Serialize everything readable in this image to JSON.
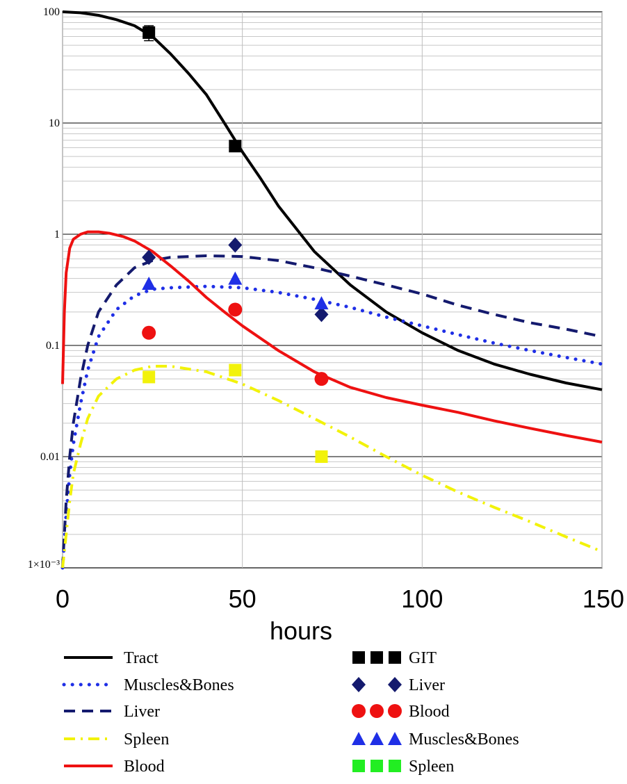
{
  "chart_data": {
    "type": "line",
    "xlabel": "hours",
    "ylabel": "",
    "xlim": [
      0,
      150
    ],
    "ylim": [
      0.001,
      100
    ],
    "yscale": "log",
    "grid": true,
    "x_ticks": [
      {
        "value": 0,
        "label": "0"
      },
      {
        "value": 50,
        "label": "50"
      },
      {
        "value": 100,
        "label": "100"
      },
      {
        "value": 150,
        "label": "150"
      }
    ],
    "y_ticks": [
      {
        "value": 100,
        "label": "100"
      },
      {
        "value": 10,
        "label": "10"
      },
      {
        "value": 1,
        "label": "1"
      },
      {
        "value": 0.1,
        "label": "0.1"
      },
      {
        "value": 0.01,
        "label": "0.01"
      },
      {
        "value": 0.001,
        "label": "1×10⁻³"
      }
    ],
    "legend_position": "bottom",
    "line_series": [
      {
        "name": "Tract",
        "color": "#000000",
        "dash": "solid",
        "x": [
          0,
          5,
          10,
          15,
          20,
          25,
          30,
          35,
          40,
          45,
          50,
          55,
          60,
          70,
          80,
          90,
          100,
          110,
          120,
          130,
          140,
          150
        ],
        "y": [
          100,
          98,
          93,
          85,
          75,
          60,
          42,
          28,
          18,
          10,
          5.5,
          3.2,
          1.8,
          0.7,
          0.35,
          0.2,
          0.13,
          0.09,
          0.068,
          0.055,
          0.046,
          0.04
        ]
      },
      {
        "name": "Muscles&Bones",
        "color": "#1f2fe6",
        "dash": "dot",
        "x": [
          0,
          1,
          2,
          3,
          5,
          7,
          10,
          15,
          20,
          25,
          30,
          40,
          50,
          60,
          70,
          80,
          90,
          100,
          110,
          120,
          130,
          140,
          150
        ],
        "y": [
          0.001,
          0.003,
          0.007,
          0.013,
          0.03,
          0.06,
          0.12,
          0.21,
          0.28,
          0.32,
          0.33,
          0.34,
          0.33,
          0.3,
          0.26,
          0.22,
          0.18,
          0.15,
          0.125,
          0.105,
          0.09,
          0.078,
          0.068
        ]
      },
      {
        "name": "Liver",
        "color": "#141a6e",
        "dash": "dash",
        "x": [
          0,
          1,
          2,
          3,
          5,
          7,
          10,
          15,
          20,
          25,
          30,
          40,
          50,
          60,
          70,
          80,
          90,
          100,
          110,
          120,
          130,
          140,
          150
        ],
        "y": [
          0.001,
          0.004,
          0.01,
          0.02,
          0.05,
          0.1,
          0.2,
          0.35,
          0.5,
          0.58,
          0.62,
          0.64,
          0.63,
          0.58,
          0.5,
          0.42,
          0.35,
          0.29,
          0.23,
          0.19,
          0.16,
          0.14,
          0.12
        ]
      },
      {
        "name": "Spleen",
        "color": "#f2f20a",
        "dash": "dashdot",
        "x": [
          0,
          1,
          2,
          3,
          5,
          7,
          10,
          15,
          20,
          25,
          30,
          40,
          50,
          60,
          70,
          80,
          90,
          100,
          110,
          120,
          130,
          140,
          150
        ],
        "y": [
          0.001,
          0.002,
          0.004,
          0.007,
          0.013,
          0.022,
          0.035,
          0.05,
          0.06,
          0.065,
          0.065,
          0.058,
          0.045,
          0.032,
          0.022,
          0.015,
          0.01,
          0.0068,
          0.0048,
          0.0035,
          0.0026,
          0.0019,
          0.0014
        ]
      },
      {
        "name": "Blood",
        "color": "#ee1111",
        "dash": "solid",
        "x": [
          0,
          0.5,
          1,
          2,
          3,
          5,
          7,
          10,
          13,
          17,
          20,
          25,
          30,
          35,
          40,
          45,
          50,
          60,
          70,
          80,
          90,
          100,
          110,
          120,
          130,
          140,
          150
        ],
        "y": [
          0.045,
          0.2,
          0.45,
          0.75,
          0.9,
          1.0,
          1.05,
          1.05,
          1.02,
          0.95,
          0.87,
          0.7,
          0.52,
          0.38,
          0.27,
          0.2,
          0.15,
          0.09,
          0.058,
          0.042,
          0.034,
          0.029,
          0.025,
          0.021,
          0.018,
          0.0155,
          0.0135
        ]
      }
    ],
    "point_series": [
      {
        "name": "GIT",
        "color": "#000000",
        "marker": "square",
        "x": [
          24,
          48
        ],
        "y": [
          65,
          6.2
        ],
        "error_y": [
          10,
          0
        ]
      },
      {
        "name": "Liver",
        "color": "#141a6e",
        "marker": "diamond",
        "x": [
          24,
          48,
          72
        ],
        "y": [
          0.62,
          0.8,
          0.19
        ]
      },
      {
        "name": "Blood",
        "color": "#ee1111",
        "marker": "circle",
        "x": [
          24,
          48,
          72
        ],
        "y": [
          0.13,
          0.21,
          0.05
        ]
      },
      {
        "name": "Muscles&Bones",
        "color": "#1f2fe6",
        "marker": "triangle",
        "x": [
          24,
          48,
          72
        ],
        "y": [
          0.36,
          0.4,
          0.24
        ]
      },
      {
        "name": "Spleen",
        "color": "#f2f20a",
        "marker": "square",
        "legend_color": "#22ee22",
        "x": [
          24,
          48,
          72
        ],
        "y": [
          0.052,
          0.06,
          0.01
        ]
      }
    ]
  }
}
